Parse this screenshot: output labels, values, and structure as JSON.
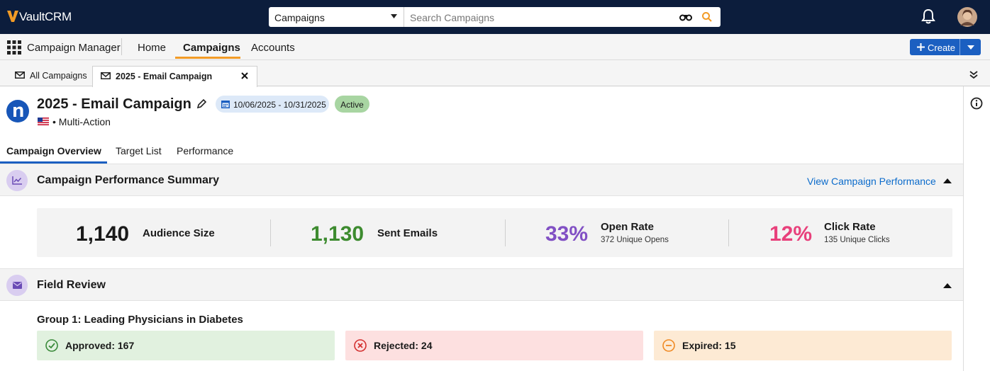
{
  "top_bar": {
    "brand": "VaultCRM",
    "search_scope": "Campaigns",
    "search_placeholder": "Search Campaigns"
  },
  "nav": {
    "app_name": "Campaign Manager",
    "tabs": [
      "Home",
      "Campaigns",
      "Accounts"
    ],
    "create_button": "Create"
  },
  "record_tabs": [
    "All Campaigns",
    "2025 - Email Campaign"
  ],
  "header": {
    "title": "2025 - Email Campaign",
    "date_range": "10/06/2025 - 10/31/2025",
    "status": "Active",
    "subtitle": "• Multi-Action"
  },
  "page_tabs": [
    "Campaign Overview",
    "Target List",
    "Performance"
  ],
  "performance_summary": {
    "title": "Campaign Performance Summary",
    "link": "View Campaign Performance",
    "metrics": [
      {
        "value": "1,140",
        "label": "Audience Size"
      },
      {
        "value": "1,130",
        "label": "Sent Emails"
      },
      {
        "value": "33%",
        "label": "Open Rate",
        "detail": "372 Unique Opens"
      },
      {
        "value": "12%",
        "label": "Click Rate",
        "detail": "135 Unique Clicks"
      }
    ]
  },
  "field_review": {
    "title": "Field Review",
    "group": "Group 1: Leading Physicians in Diabetes",
    "statuses": [
      "Approved: 167",
      "Rejected: 24",
      "Expired: 15"
    ]
  }
}
